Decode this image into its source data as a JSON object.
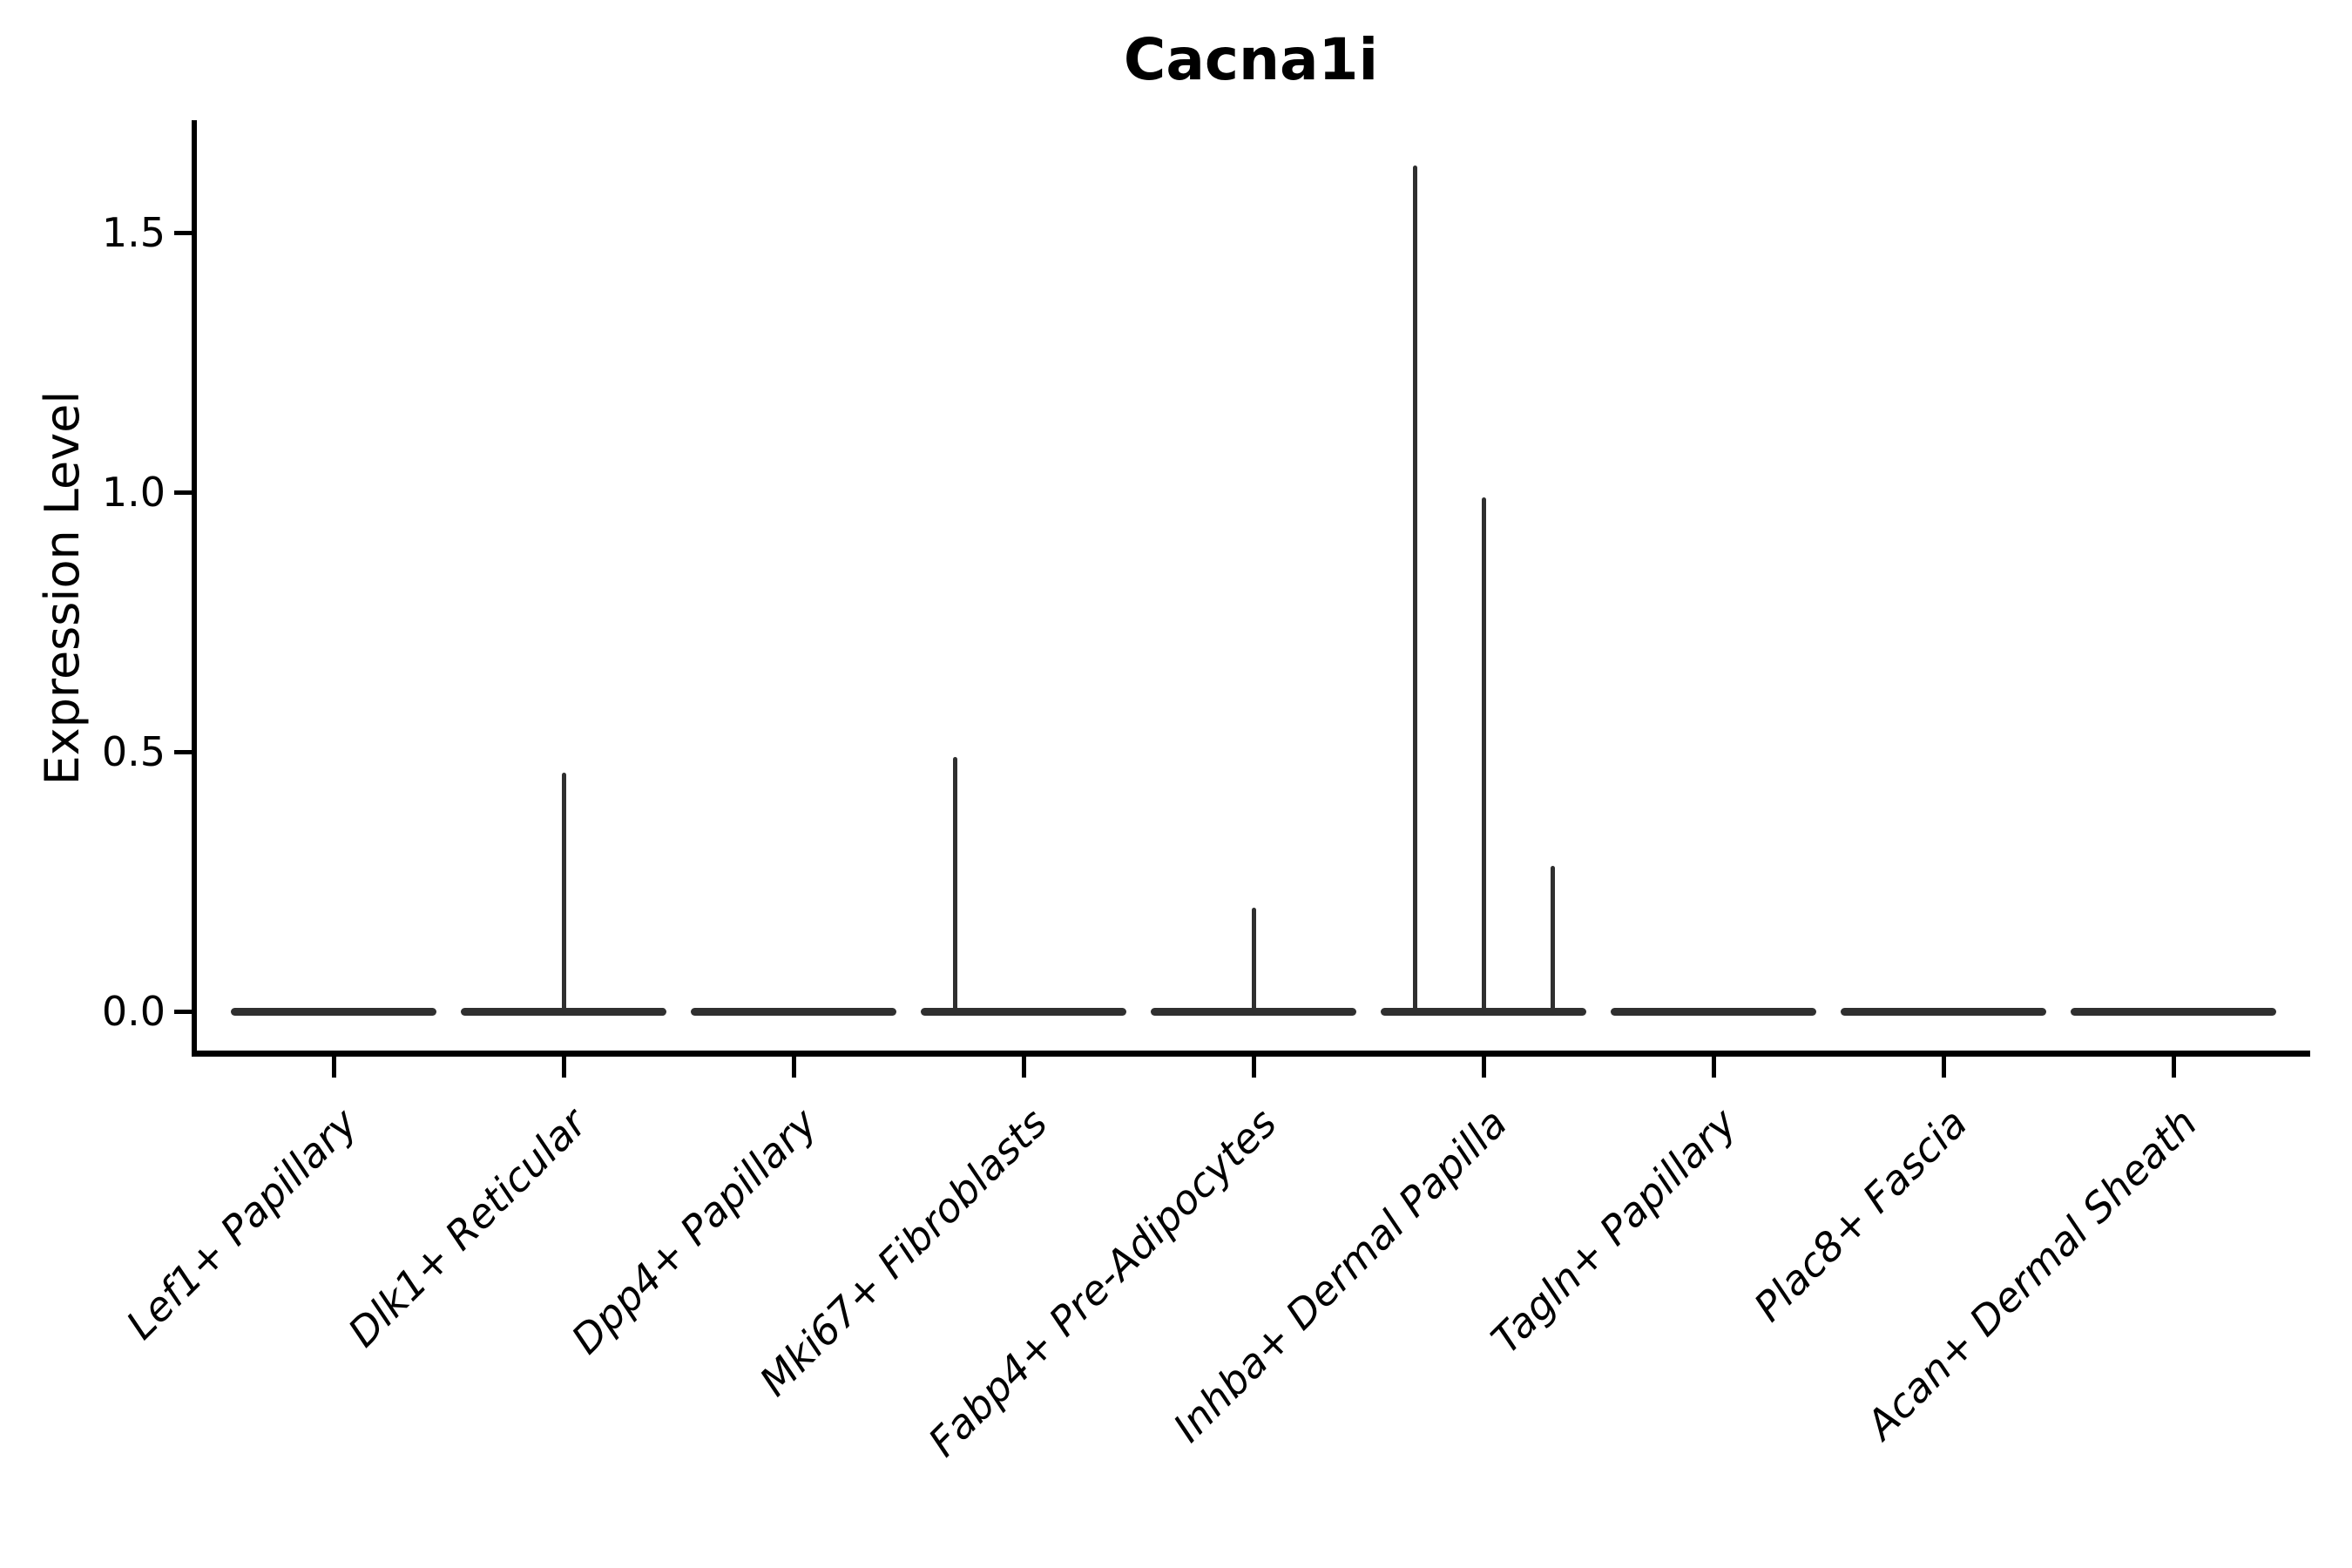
{
  "chart_data": {
    "type": "violin",
    "title": "Cacna1i",
    "ylabel": "Expression Level",
    "xlabel": "",
    "categories": [
      "Lef1+ Papillary",
      "Dlk1+ Reticular",
      "Dpp4+ Papillary",
      "Mki67+ Fibroblasts",
      "Fabp4+ Pre-Adipocytes",
      "Inhba+ Dermal Papilla",
      "Tagln+ Papillary",
      "Plac8+ Fascia",
      "Acan+ Dermal Sheath"
    ],
    "y_ticks": [
      "0.0",
      "0.5",
      "1.0",
      "1.5"
    ],
    "y_tick_values": [
      0.0,
      0.5,
      1.0,
      1.5
    ],
    "ylim": [
      -0.08,
      1.71
    ],
    "grid": false,
    "legend": "none",
    "series": [
      {
        "name": "Lef1+ Papillary",
        "baseline_value": 0.0,
        "spikes": []
      },
      {
        "name": "Dlk1+ Reticular",
        "baseline_value": 0.0,
        "spikes": [
          {
            "value": 0.46,
            "offset_frac": 0.0
          }
        ]
      },
      {
        "name": "Dpp4+ Papillary",
        "baseline_value": 0.0,
        "spikes": []
      },
      {
        "name": "Mki67+ Fibroblasts",
        "baseline_value": 0.0,
        "spikes": [
          {
            "value": 0.49,
            "offset_frac": -0.3
          }
        ]
      },
      {
        "name": "Fabp4+ Pre-Adipocytes",
        "baseline_value": 0.0,
        "spikes": [
          {
            "value": 0.2,
            "offset_frac": 0.0
          }
        ]
      },
      {
        "name": "Inhba+ Dermal Papilla",
        "baseline_value": 0.0,
        "spikes": [
          {
            "value": 1.63,
            "offset_frac": -0.3
          },
          {
            "value": 0.99,
            "offset_frac": 0.0
          },
          {
            "value": 0.28,
            "offset_frac": 0.3
          }
        ]
      },
      {
        "name": "Tagln+ Papillary",
        "baseline_value": 0.0,
        "spikes": []
      },
      {
        "name": "Plac8+ Fascia",
        "baseline_value": 0.0,
        "spikes": []
      },
      {
        "name": "Acan+ Dermal Sheath",
        "baseline_value": 0.0,
        "spikes": []
      }
    ],
    "colors": {
      "violin": "#2f2f2f",
      "spine": "#000000",
      "text": "#000000"
    }
  }
}
